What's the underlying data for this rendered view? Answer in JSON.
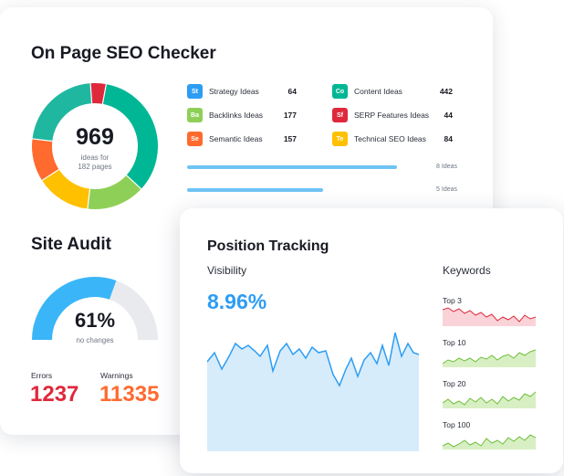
{
  "seo_checker": {
    "title": "On Page SEO Checker",
    "total_ideas": "969",
    "total_sub_line1": "ideas for",
    "total_sub_line2": "182 pages",
    "donut_segments": [
      {
        "name": "Content",
        "value": 34,
        "color": "#00b795"
      },
      {
        "name": "Backlinks",
        "value": 15,
        "color": "#8ed057"
      },
      {
        "name": "Technical SEO",
        "value": 14,
        "color": "#ffc000"
      },
      {
        "name": "Semantic",
        "value": 11,
        "color": "#ff6a2f"
      },
      {
        "name": "Strategy",
        "value": 22,
        "color": "#20b7a0"
      },
      {
        "name": "SERP Features",
        "value": 4,
        "color": "#e0283c"
      }
    ],
    "ideas_left": [
      {
        "abbr": "St",
        "label": "Strategy Ideas",
        "value": "64",
        "color": "#2d9df3"
      },
      {
        "abbr": "Ba",
        "label": "Backlinks Ideas",
        "value": "177",
        "color": "#8ed057"
      },
      {
        "abbr": "Se",
        "label": "Semantic Ideas",
        "value": "157",
        "color": "#ff6a2f"
      }
    ],
    "ideas_right": [
      {
        "abbr": "Co",
        "label": "Content Ideas",
        "value": "442",
        "color": "#00b795"
      },
      {
        "abbr": "Sf",
        "label": "SERP Features Ideas",
        "value": "44",
        "color": "#e0283c"
      },
      {
        "abbr": "Te",
        "label": "Technical SEO Ideas",
        "value": "84",
        "color": "#ffc000"
      }
    ],
    "progress_rows": [
      {
        "label": "8 Ideas",
        "fill": 0.85
      },
      {
        "label": "5 Ideas",
        "fill": 0.55
      }
    ]
  },
  "site_audit": {
    "title": "Site Audit",
    "health_percent": "61%",
    "health_value": 0.61,
    "health_sub": "no changes",
    "errors_label": "Errors",
    "errors_value": "1237",
    "warnings_label": "Warnings",
    "warnings_value": "11335",
    "colors": {
      "fill": "#3ab6f8",
      "track": "#e8eaee",
      "errors": "#e0283c",
      "warnings": "#ff6a2f"
    }
  },
  "position_tracking": {
    "title": "Position Tracking",
    "visibility_label": "Visibility",
    "visibility_value": "8.96%",
    "keywords_label": "Keywords",
    "keyword_groups": [
      {
        "label": "Top 3",
        "color": "red"
      },
      {
        "label": "Top 10",
        "color": "green"
      },
      {
        "label": "Top 20",
        "color": "green"
      },
      {
        "label": "Top 100",
        "color": "green"
      }
    ],
    "accent": "#2d9df3"
  }
}
